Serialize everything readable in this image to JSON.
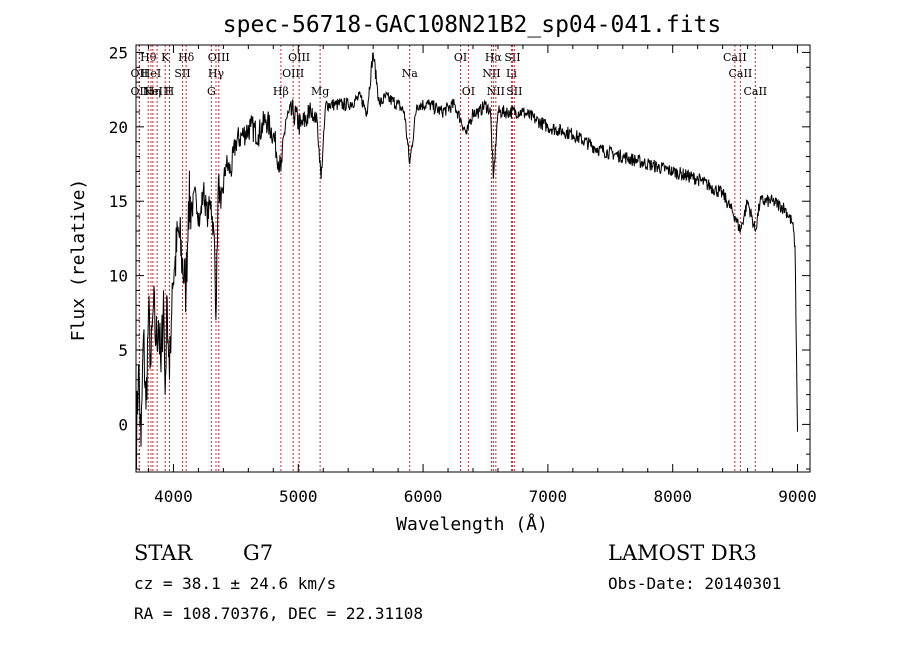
{
  "chart_data": {
    "type": "line",
    "title": "spec-56718-GAC108N21B2_sp04-041.fits",
    "xlabel": "Wavelength (Å)",
    "ylabel": "Flux (relative)",
    "xlim": [
      3700,
      9100
    ],
    "ylim": [
      -3.2,
      25.5
    ],
    "xticks": [
      4000,
      5000,
      6000,
      7000,
      8000,
      9000
    ],
    "yticks": [
      0,
      5,
      10,
      15,
      20,
      25
    ],
    "grid": false,
    "series": [
      {
        "name": "flux",
        "x": [
          3700,
          3720,
          3740,
          3760,
          3780,
          3800,
          3820,
          3840,
          3860,
          3880,
          3900,
          3920,
          3933,
          3950,
          3968,
          3990,
          4010,
          4040,
          4070,
          4101,
          4120,
          4150,
          4180,
          4210,
          4240,
          4270,
          4300,
          4330,
          4340,
          4360,
          4380,
          4420,
          4460,
          4500,
          4560,
          4620,
          4680,
          4740,
          4800,
          4861,
          4900,
          4960,
          5020,
          5100,
          5150,
          5183,
          5220,
          5300,
          5400,
          5500,
          5550,
          5600,
          5650,
          5700,
          5800,
          5850,
          5893,
          5950,
          6050,
          6150,
          6250,
          6300,
          6350,
          6400,
          6450,
          6500,
          6540,
          6563,
          6600,
          6700,
          6800,
          6900,
          7000,
          7200,
          7400,
          7600,
          7800,
          8000,
          8200,
          8400,
          8498,
          8542,
          8600,
          8662,
          8700,
          8800,
          8900,
          8960,
          8980,
          9000
        ],
        "y": [
          -2.0,
          4.0,
          -1.5,
          6.0,
          1.0,
          7.5,
          4.0,
          8.0,
          5.5,
          7.0,
          3.5,
          9.0,
          2.0,
          8.5,
          3.0,
          9.5,
          10.5,
          13.0,
          11.0,
          9.0,
          15.0,
          14.5,
          15.5,
          13.5,
          15.8,
          14.0,
          15.0,
          12.0,
          7.0,
          16.5,
          14.5,
          17.5,
          17.0,
          19.0,
          19.5,
          20.0,
          19.5,
          20.5,
          19.5,
          17.0,
          20.5,
          21.0,
          20.0,
          21.0,
          20.5,
          16.5,
          21.5,
          21.5,
          21.5,
          22.0,
          21.0,
          25.0,
          21.5,
          22.0,
          21.5,
          21.0,
          17.5,
          21.5,
          21.5,
          21.0,
          21.5,
          20.5,
          19.5,
          21.0,
          21.0,
          21.5,
          21.0,
          16.5,
          21.0,
          21.0,
          21.0,
          20.5,
          20.0,
          19.5,
          18.5,
          18.0,
          17.5,
          17.0,
          16.5,
          15.5,
          14.0,
          13.0,
          15.0,
          13.0,
          15.0,
          15.0,
          14.5,
          13.5,
          12.0,
          -0.5
        ]
      }
    ],
    "line_marks": [
      {
        "wavelength": 3727,
        "label": "OII",
        "row": 2
      },
      {
        "wavelength": 3727,
        "label": "OII",
        "row": 3
      },
      {
        "wavelength": 3798,
        "label": "Hθ",
        "row": 1
      },
      {
        "wavelength": 3820,
        "label": "HeI",
        "row": 2
      },
      {
        "wavelength": 3835,
        "label": "Hη",
        "row": 3
      },
      {
        "wavelength": 3869,
        "label": "NeIII",
        "row": 3
      },
      {
        "wavelength": 3934,
        "label": "K",
        "row": 1
      },
      {
        "wavelength": 3968,
        "label": "H",
        "row": 3
      },
      {
        "wavelength": 4072,
        "label": "SII",
        "row": 2
      },
      {
        "wavelength": 4102,
        "label": "Hδ",
        "row": 1
      },
      {
        "wavelength": 4304,
        "label": "G",
        "row": 3
      },
      {
        "wavelength": 4341,
        "label": "Hγ",
        "row": 2
      },
      {
        "wavelength": 4363,
        "label": "OIII",
        "row": 1
      },
      {
        "wavelength": 4861,
        "label": "Hβ",
        "row": 3
      },
      {
        "wavelength": 4959,
        "label": "OIII",
        "row": 2
      },
      {
        "wavelength": 5007,
        "label": "OIII",
        "row": 1
      },
      {
        "wavelength": 5175,
        "label": "Mg",
        "row": 3
      },
      {
        "wavelength": 5893,
        "label": "Na",
        "row": 2
      },
      {
        "wavelength": 6300,
        "label": "OI",
        "row": 1
      },
      {
        "wavelength": 6363,
        "label": "OI",
        "row": 3
      },
      {
        "wavelength": 6548,
        "label": "NII",
        "row": 2
      },
      {
        "wavelength": 6563,
        "label": "Hα",
        "row": 1
      },
      {
        "wavelength": 6583,
        "label": "NII",
        "row": 3
      },
      {
        "wavelength": 6708,
        "label": "Li",
        "row": 2
      },
      {
        "wavelength": 6716,
        "label": "SII",
        "row": 1
      },
      {
        "wavelength": 6731,
        "label": "SII",
        "row": 3
      },
      {
        "wavelength": 8498,
        "label": "CaII",
        "row": 1
      },
      {
        "wavelength": 8542,
        "label": "CaII",
        "row": 2
      },
      {
        "wavelength": 8662,
        "label": "CaII",
        "row": 3
      }
    ]
  },
  "info": {
    "class": "STAR",
    "subclass": "G7",
    "survey": "LAMOST DR3",
    "cz": "cz = 38.1 ± 24.6 km/s",
    "obs_date": "Obs-Date: 20140301",
    "coords": "RA = 108.70376, DEC =  22.31108"
  }
}
